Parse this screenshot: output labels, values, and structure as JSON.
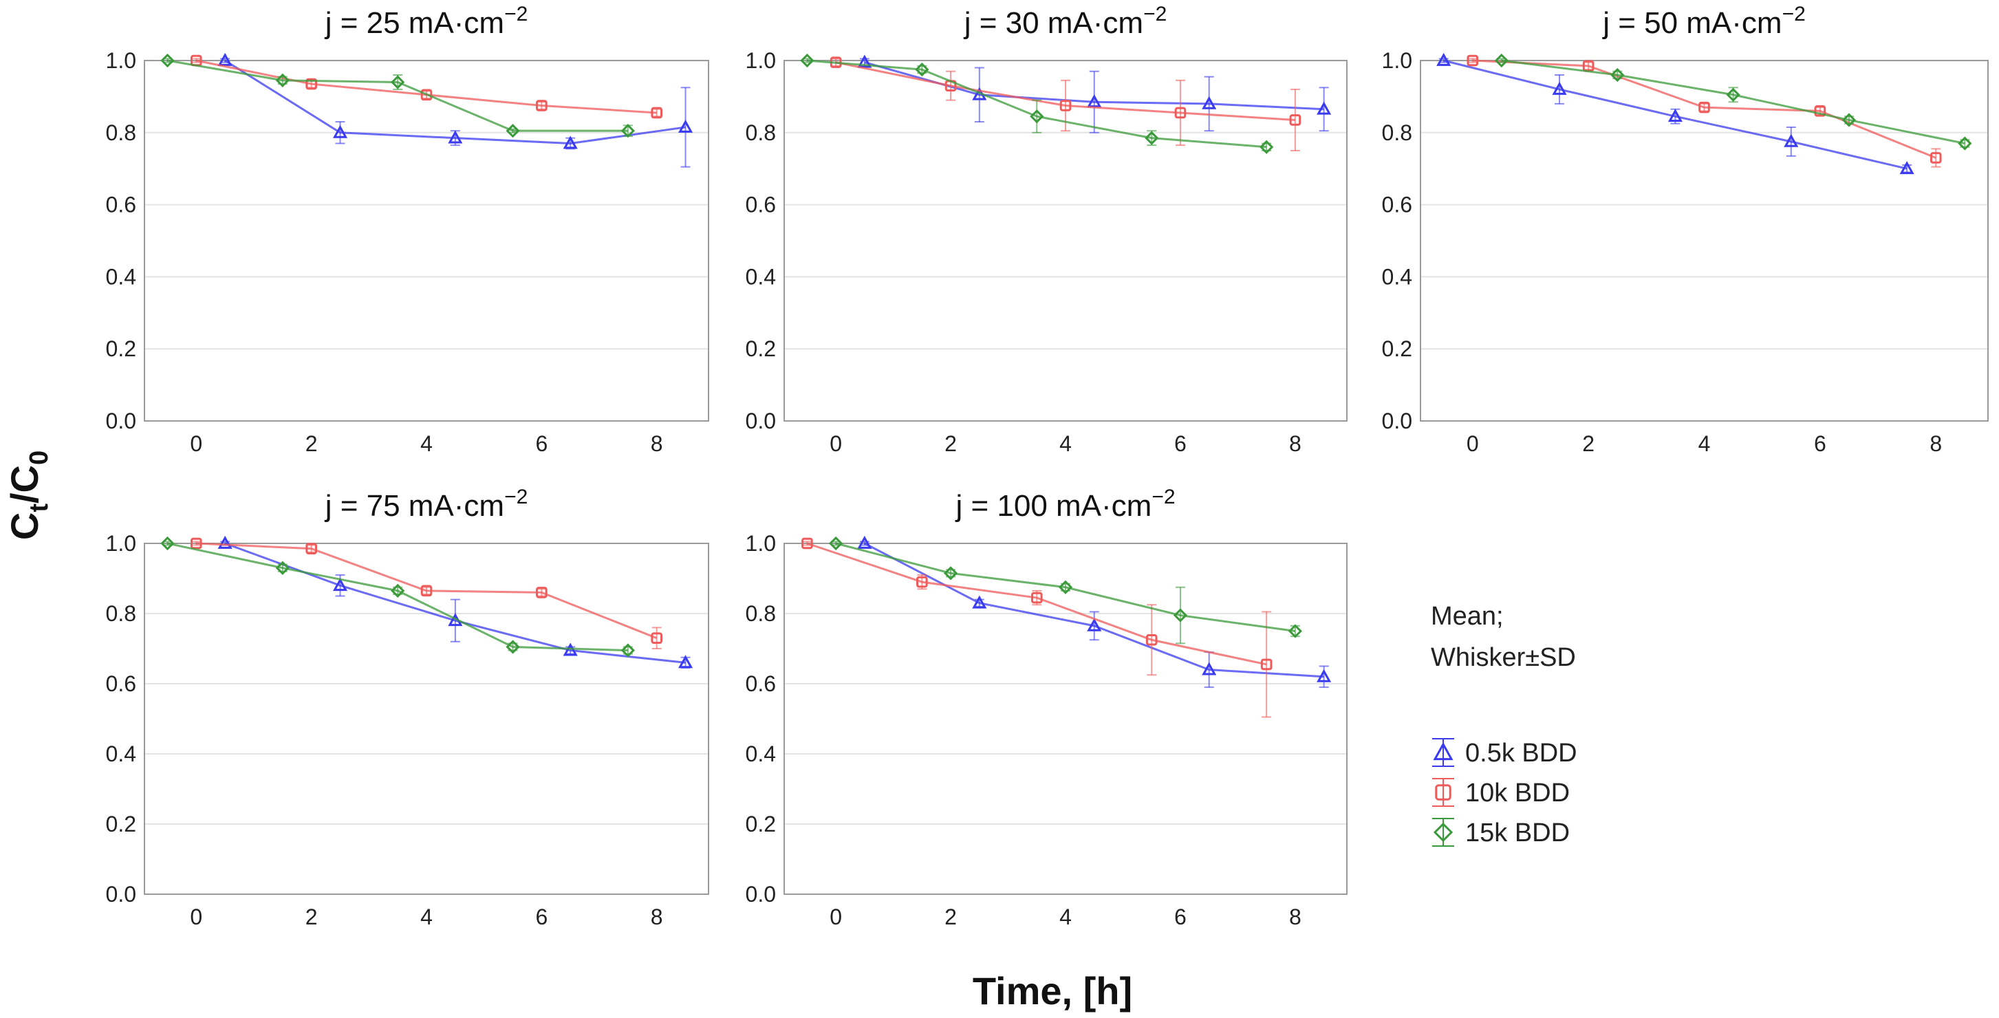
{
  "figure": {
    "ylabel_main": "C",
    "ylabel_sub_t": "t",
    "ylabel_slash": "/C",
    "ylabel_sub_0": "0",
    "xlabel": "Time, [h]"
  },
  "legend": {
    "note_line1": "Mean;",
    "note_line2": "Whisker±SD",
    "items": [
      {
        "label": "0.5k BDD",
        "color": "#3a3af0",
        "marker": "triangle"
      },
      {
        "label": "10k BDD",
        "color": "#ef5a5a",
        "marker": "square"
      },
      {
        "label": "15k BDD",
        "color": "#3a9a3a",
        "marker": "diamond"
      }
    ]
  },
  "chart_data": [
    {
      "type": "line",
      "title_prefix": "j = 25 mA·cm",
      "title_sup": "−2",
      "xticks": [
        "0",
        "2",
        "4",
        "6",
        "8"
      ],
      "yticks": [
        "0.0",
        "0.2",
        "0.4",
        "0.6",
        "0.8",
        "1.0"
      ],
      "xlim": [
        -0.9,
        8.9
      ],
      "ylim": [
        0,
        1.0
      ],
      "series": [
        {
          "name": "0.5k BDD",
          "x": [
            0.5,
            2.5,
            4.5,
            6.5,
            8.5
          ],
          "y": [
            1.0,
            0.8,
            0.785,
            0.77,
            0.815
          ],
          "sd": [
            0.005,
            0.03,
            0.02,
            0.015,
            0.11
          ]
        },
        {
          "name": "10k BDD",
          "x": [
            0,
            2,
            4,
            6,
            8
          ],
          "y": [
            1.0,
            0.935,
            0.905,
            0.875,
            0.855
          ],
          "sd": [
            0.005,
            0.01,
            0.01,
            0.01,
            0.01
          ]
        },
        {
          "name": "15k BDD",
          "x": [
            -0.5,
            1.5,
            3.5,
            5.5,
            7.5
          ],
          "y": [
            1.0,
            0.945,
            0.94,
            0.805,
            0.805
          ],
          "sd": [
            0.005,
            0.01,
            0.02,
            0.005,
            0.015
          ]
        }
      ]
    },
    {
      "type": "line",
      "title_prefix": "j = 30 mA·cm",
      "title_sup": "−2",
      "xticks": [
        "0",
        "2",
        "4",
        "6",
        "8"
      ],
      "yticks": [
        "0.0",
        "0.2",
        "0.4",
        "0.6",
        "0.8",
        "1.0"
      ],
      "xlim": [
        -0.9,
        8.9
      ],
      "ylim": [
        0,
        1.0
      ],
      "series": [
        {
          "name": "0.5k BDD",
          "x": [
            0.5,
            2.5,
            4.5,
            6.5,
            8.5
          ],
          "y": [
            0.995,
            0.905,
            0.885,
            0.88,
            0.865
          ],
          "sd": [
            0.01,
            0.075,
            0.085,
            0.075,
            0.06
          ]
        },
        {
          "name": "10k BDD",
          "x": [
            0,
            2,
            4,
            6,
            8
          ],
          "y": [
            0.995,
            0.93,
            0.875,
            0.855,
            0.835
          ],
          "sd": [
            0.01,
            0.04,
            0.07,
            0.09,
            0.085
          ]
        },
        {
          "name": "15k BDD",
          "x": [
            -0.5,
            1.5,
            3.5,
            5.5,
            7.5
          ],
          "y": [
            1.0,
            0.975,
            0.845,
            0.785,
            0.76
          ],
          "sd": [
            0.005,
            0.01,
            0.045,
            0.02,
            0.01
          ]
        }
      ]
    },
    {
      "type": "line",
      "title_prefix": "j = 50 mA·cm",
      "title_sup": "−2",
      "xticks": [
        "0",
        "2",
        "4",
        "6",
        "8"
      ],
      "yticks": [
        "0.0",
        "0.2",
        "0.4",
        "0.6",
        "0.8",
        "1.0"
      ],
      "xlim": [
        -0.9,
        8.9
      ],
      "ylim": [
        0,
        1.0
      ],
      "series": [
        {
          "name": "0.5k BDD",
          "x": [
            -0.5,
            1.5,
            3.5,
            5.5,
            7.5
          ],
          "y": [
            1.0,
            0.92,
            0.845,
            0.775,
            0.7
          ],
          "sd": [
            0.005,
            0.04,
            0.02,
            0.04,
            0.01
          ]
        },
        {
          "name": "10k BDD",
          "x": [
            0,
            2,
            4,
            6,
            8
          ],
          "y": [
            1.0,
            0.985,
            0.87,
            0.86,
            0.73
          ],
          "sd": [
            0.005,
            0.01,
            0.01,
            0.01,
            0.025
          ]
        },
        {
          "name": "15k BDD",
          "x": [
            0.5,
            2.5,
            4.5,
            6.5,
            8.5
          ],
          "y": [
            1.0,
            0.96,
            0.905,
            0.835,
            0.77
          ],
          "sd": [
            0.005,
            0.01,
            0.02,
            0.01,
            0.01
          ]
        }
      ]
    },
    {
      "type": "line",
      "title_prefix": "j = 75 mA·cm",
      "title_sup": "−2",
      "xticks": [
        "0",
        "2",
        "4",
        "6",
        "8"
      ],
      "yticks": [
        "0.0",
        "0.2",
        "0.4",
        "0.6",
        "0.8",
        "1.0"
      ],
      "xlim": [
        -0.9,
        8.9
      ],
      "ylim": [
        0,
        1.0
      ],
      "series": [
        {
          "name": "0.5k BDD",
          "x": [
            0.5,
            2.5,
            4.5,
            6.5,
            8.5
          ],
          "y": [
            1.0,
            0.88,
            0.78,
            0.695,
            0.66
          ],
          "sd": [
            0.005,
            0.03,
            0.06,
            0.01,
            0.015
          ]
        },
        {
          "name": "10k BDD",
          "x": [
            0,
            2,
            4,
            6,
            8
          ],
          "y": [
            1.0,
            0.985,
            0.865,
            0.86,
            0.73
          ],
          "sd": [
            0.005,
            0.01,
            0.01,
            0.01,
            0.03
          ]
        },
        {
          "name": "15k BDD",
          "x": [
            -0.5,
            1.5,
            3.5,
            5.5,
            7.5
          ],
          "y": [
            1.0,
            0.93,
            0.865,
            0.705,
            0.695
          ],
          "sd": [
            0.005,
            0.01,
            0.01,
            0.01,
            0.01
          ]
        }
      ]
    },
    {
      "type": "line",
      "title_prefix": "j = 100 mA·cm",
      "title_sup": "−2",
      "xticks": [
        "0",
        "2",
        "4",
        "6",
        "8"
      ],
      "yticks": [
        "0.0",
        "0.2",
        "0.4",
        "0.6",
        "0.8",
        "1.0"
      ],
      "xlim": [
        -0.9,
        8.9
      ],
      "ylim": [
        0,
        1.0
      ],
      "series": [
        {
          "name": "0.5k BDD",
          "x": [
            0.5,
            2.5,
            4.5,
            6.5,
            8.5
          ],
          "y": [
            1.0,
            0.83,
            0.765,
            0.64,
            0.62
          ],
          "sd": [
            0.005,
            0.01,
            0.04,
            0.05,
            0.03
          ]
        },
        {
          "name": "10k BDD",
          "x": [
            -0.5,
            1.5,
            3.5,
            5.5,
            7.5
          ],
          "y": [
            1.0,
            0.89,
            0.845,
            0.725,
            0.655
          ],
          "sd": [
            0.005,
            0.02,
            0.02,
            0.1,
            0.15
          ]
        },
        {
          "name": "15k BDD",
          "x": [
            0,
            2,
            4,
            6,
            8
          ],
          "y": [
            1.0,
            0.915,
            0.875,
            0.795,
            0.75
          ],
          "sd": [
            0.005,
            0.01,
            0.01,
            0.08,
            0.015
          ]
        }
      ]
    }
  ]
}
